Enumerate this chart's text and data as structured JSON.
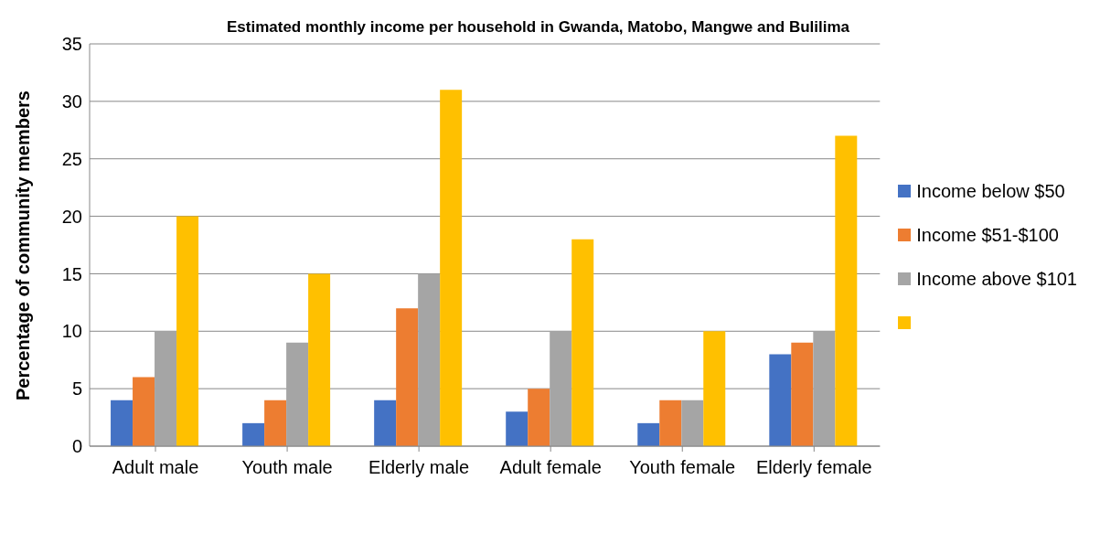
{
  "chart_data": {
    "type": "bar",
    "title": "Estimated monthly income per household in Gwanda, Matobo, Mangwe and Bulilima",
    "ylabel": "Percentage of community members",
    "categories": [
      "Adult male",
      "Youth male",
      "Elderly male",
      "Adult female",
      "Youth female",
      "Elderly female"
    ],
    "series": [
      {
        "name": "Income below $50",
        "color": "#4472c4",
        "values": [
          4,
          2,
          4,
          3,
          2,
          8
        ]
      },
      {
        "name": "Income $51-$100",
        "color": "#ed7d31",
        "values": [
          6,
          4,
          12,
          5,
          4,
          9
        ]
      },
      {
        "name": "Income above $101",
        "color": "#a5a5a5",
        "values": [
          10,
          9,
          15,
          10,
          4,
          10
        ]
      },
      {
        "color": "#ffc000",
        "values": [
          20,
          15,
          31,
          18,
          10,
          27
        ]
      }
    ],
    "ylim": [
      0,
      35
    ],
    "yticks": [
      0,
      5,
      10,
      15,
      20,
      25,
      30,
      35
    ],
    "grid": "y",
    "legend": "right"
  }
}
